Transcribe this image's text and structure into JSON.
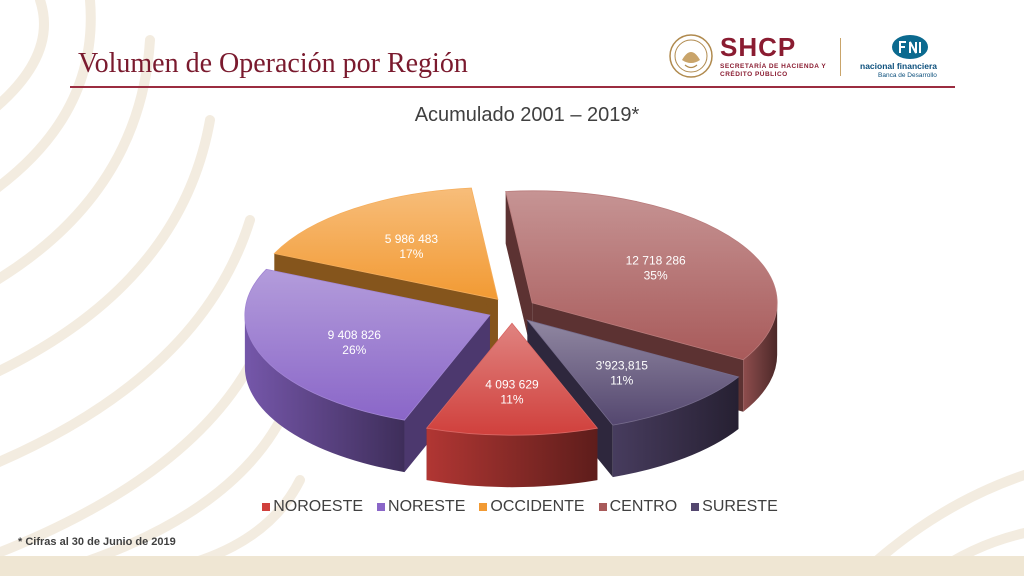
{
  "header": {
    "title": "Volumen de Operación por Región",
    "logos": {
      "shcp_name": "SHCP",
      "shcp_subtitle": "SECRETARÍA DE HACIENDA Y CRÉDITO PÚBLICO",
      "nafin_name": "nacional financiera",
      "nafin_subtitle": "Banca de Desarrollo"
    }
  },
  "chart_data": {
    "type": "pie",
    "title": "Acumulado 2001 – 2019*",
    "categories": [
      "NOROESTE",
      "NORESTE",
      "OCCIDENTE",
      "CENTRO",
      "SURESTE"
    ],
    "value_labels": [
      "4 093 629",
      "9 408 826",
      "5 986 483",
      "12 718 286",
      "3'923,815"
    ],
    "values": [
      4093629,
      9408826,
      5986483,
      12718286,
      3923815
    ],
    "percent_labels": [
      "11%",
      "26%",
      "17%",
      "35%",
      "11%"
    ],
    "colors": [
      "#d0403c",
      "#8a66c8",
      "#f29a33",
      "#a85a5a",
      "#54476f"
    ],
    "exploded": true,
    "three_d": true,
    "legend_position": "bottom"
  },
  "footnote": "* Cifras al 30 de Junio de 2019",
  "colors": {
    "title": "#7a1a2e",
    "rule": "#9b2c40",
    "band": "#efe6d3"
  }
}
